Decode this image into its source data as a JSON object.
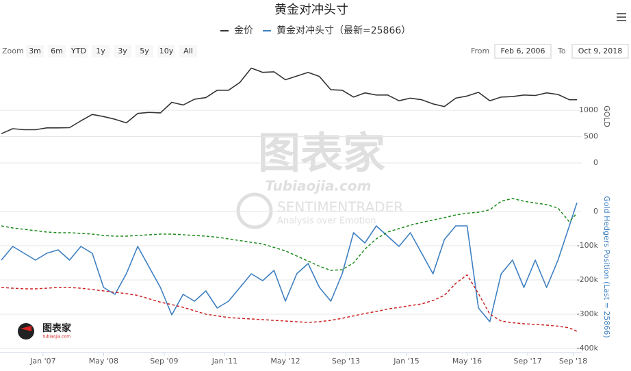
{
  "chart_data": {
    "type": "line",
    "title": "黄金对冲头寸",
    "zoom_label": "Zoom",
    "range_buttons": [
      "3m",
      "6m",
      "YTD",
      "1y",
      "3y",
      "5y",
      "10y",
      "All"
    ],
    "from_label": "From",
    "from_date": "Feb 6, 2006",
    "to_label": "To",
    "to_date": "Oct 9, 2018",
    "y_title": "GOLD",
    "y2_title": "Gold Hedgers Position (Last = 25866)",
    "watermark": {
      "brand": "图表家",
      "url": "Tubiaojia.com",
      "source": "SENTIMENTRADER",
      "tagline": "Analysis over Emotion"
    },
    "logo": {
      "brand": "图表家",
      "url": "Tubiaojia.com"
    },
    "x": [
      "2006-02",
      "2006-05",
      "2006-08",
      "2006-11",
      "2007-02",
      "2007-05",
      "2007-08",
      "2007-11",
      "2008-02",
      "2008-05",
      "2008-08",
      "2008-11",
      "2009-02",
      "2009-05",
      "2009-08",
      "2009-11",
      "2010-02",
      "2010-05",
      "2010-08",
      "2010-11",
      "2011-02",
      "2011-05",
      "2011-08",
      "2011-11",
      "2012-02",
      "2012-05",
      "2012-08",
      "2012-11",
      "2013-02",
      "2013-05",
      "2013-08",
      "2013-11",
      "2014-02",
      "2014-05",
      "2014-08",
      "2014-11",
      "2015-02",
      "2015-05",
      "2015-08",
      "2015-11",
      "2016-02",
      "2016-05",
      "2016-08",
      "2016-11",
      "2017-02",
      "2017-05",
      "2017-08",
      "2017-11",
      "2018-02",
      "2018-05",
      "2018-08",
      "2018-10"
    ],
    "xlim": [
      "2006-02",
      "2018-10"
    ],
    "xticks": [
      {
        "value": "2007-01",
        "label": "Jan '07"
      },
      {
        "value": "2008-05",
        "label": "May '08"
      },
      {
        "value": "2009-09",
        "label": "Sep '09"
      },
      {
        "value": "2011-01",
        "label": "Jan '11"
      },
      {
        "value": "2012-05",
        "label": "May '12"
      },
      {
        "value": "2013-09",
        "label": "Sep '13"
      },
      {
        "value": "2015-01",
        "label": "Jan '15"
      },
      {
        "value": "2016-05",
        "label": "May '16"
      },
      {
        "value": "2017-09",
        "label": "Sep '17"
      },
      {
        "value": "2018-09",
        "label": "Sep '18"
      }
    ],
    "ylim": [
      0,
      1950
    ],
    "yticks": [
      0,
      500,
      1000
    ],
    "y2lim": [
      -400000,
      80000
    ],
    "y2ticks": [
      {
        "value": -400000,
        "label": "-400k"
      },
      {
        "value": -300000,
        "label": "-300k"
      },
      {
        "value": -200000,
        "label": "-200k"
      },
      {
        "value": -100000,
        "label": "-100k"
      },
      0
    ],
    "grid": true,
    "series": [
      {
        "name": "金价",
        "color": "#333333",
        "axis": "y",
        "dash": false,
        "values": [
          555,
          650,
          630,
          630,
          665,
          665,
          670,
          800,
          920,
          880,
          830,
          760,
          940,
          960,
          950,
          1150,
          1100,
          1210,
          1240,
          1380,
          1380,
          1530,
          1800,
          1720,
          1730,
          1580,
          1650,
          1720,
          1640,
          1390,
          1380,
          1250,
          1330,
          1290,
          1290,
          1180,
          1230,
          1200,
          1120,
          1070,
          1230,
          1270,
          1340,
          1180,
          1250,
          1260,
          1290,
          1280,
          1330,
          1300,
          1200,
          1200
        ]
      },
      {
        "name": "黄金对冲头寸（最新=25866）",
        "color": "#3d7fc1",
        "axis": "y2",
        "dash": false,
        "values": [
          -142000,
          -102000,
          -122000,
          -142000,
          -122000,
          -112000,
          -142000,
          -102000,
          -122000,
          -222000,
          -242000,
          -182000,
          -102000,
          -162000,
          -222000,
          -302000,
          -242000,
          -262000,
          -232000,
          -282000,
          -262000,
          -222000,
          -182000,
          -202000,
          -172000,
          -262000,
          -182000,
          -152000,
          -222000,
          -262000,
          -182000,
          -62000,
          -92000,
          -42000,
          -72000,
          -102000,
          -62000,
          -122000,
          -182000,
          -82000,
          -42000,
          -42000,
          -282000,
          -322000,
          -182000,
          -142000,
          -222000,
          -142000,
          -222000,
          -142000,
          -42000,
          25866
        ]
      },
      {
        "color": "#1a8a1a",
        "axis": "y2",
        "dash": true,
        "values": [
          -42000,
          -48000,
          -52000,
          -56000,
          -60000,
          -62000,
          -62000,
          -64000,
          -66000,
          -70000,
          -72000,
          -72000,
          -70000,
          -68000,
          -66000,
          -66000,
          -68000,
          -70000,
          -72000,
          -75000,
          -80000,
          -85000,
          -90000,
          -95000,
          -105000,
          -115000,
          -130000,
          -145000,
          -160000,
          -172000,
          -170000,
          -150000,
          -110000,
          -80000,
          -60000,
          -50000,
          -40000,
          -32000,
          -25000,
          -18000,
          -10000,
          -5000,
          -2000,
          5000,
          30000,
          38000,
          30000,
          25000,
          20000,
          10000,
          -30000,
          -5000
        ]
      },
      {
        "color": "#cc2222",
        "axis": "y2",
        "dash": true,
        "values": [
          -222000,
          -224000,
          -226000,
          -226000,
          -224000,
          -222000,
          -222000,
          -224000,
          -228000,
          -232000,
          -236000,
          -240000,
          -245000,
          -255000,
          -265000,
          -272000,
          -280000,
          -290000,
          -300000,
          -305000,
          -310000,
          -312000,
          -314000,
          -316000,
          -318000,
          -320000,
          -322000,
          -324000,
          -322000,
          -318000,
          -312000,
          -305000,
          -298000,
          -292000,
          -285000,
          -280000,
          -275000,
          -270000,
          -260000,
          -245000,
          -210000,
          -185000,
          -240000,
          -300000,
          -320000,
          -325000,
          -328000,
          -330000,
          -332000,
          -335000,
          -340000,
          -350000
        ]
      }
    ]
  }
}
